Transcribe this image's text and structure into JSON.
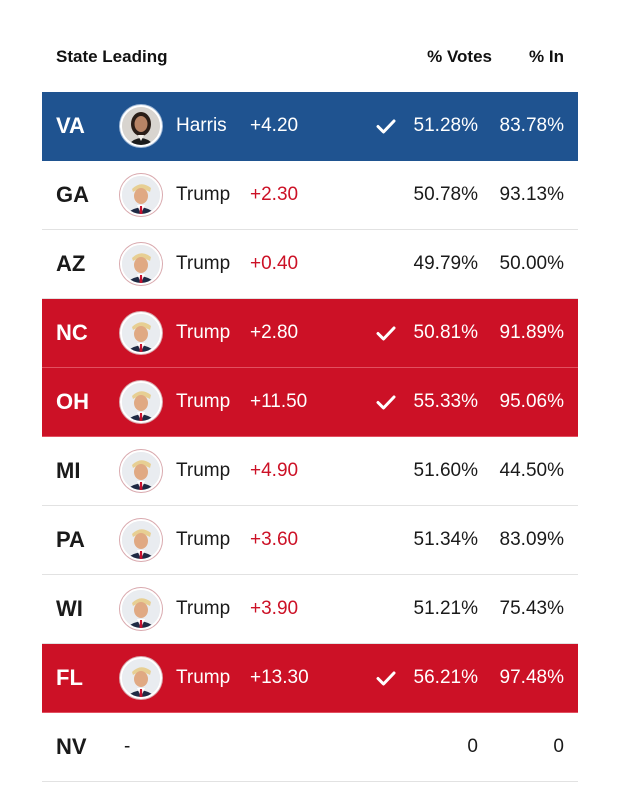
{
  "header": {
    "state_leading": "State Leading",
    "pct_votes": "% Votes",
    "pct_in": "% In"
  },
  "colors": {
    "dem": "#1f5390",
    "rep": "#cc1126"
  },
  "rows": [
    {
      "state": "VA",
      "candidate": "Harris",
      "margin": "+4.20",
      "called": true,
      "votes": "51.28%",
      "in": "83.78%",
      "style": "blue"
    },
    {
      "state": "GA",
      "candidate": "Trump",
      "margin": "+2.30",
      "called": false,
      "votes": "50.78%",
      "in": "93.13%",
      "style": "plain"
    },
    {
      "state": "AZ",
      "candidate": "Trump",
      "margin": "+0.40",
      "called": false,
      "votes": "49.79%",
      "in": "50.00%",
      "style": "plain"
    },
    {
      "state": "NC",
      "candidate": "Trump",
      "margin": "+2.80",
      "called": true,
      "votes": "50.81%",
      "in": "91.89%",
      "style": "red"
    },
    {
      "state": "OH",
      "candidate": "Trump",
      "margin": "+11.50",
      "called": true,
      "votes": "55.33%",
      "in": "95.06%",
      "style": "red"
    },
    {
      "state": "MI",
      "candidate": "Trump",
      "margin": "+4.90",
      "called": false,
      "votes": "51.60%",
      "in": "44.50%",
      "style": "plain"
    },
    {
      "state": "PA",
      "candidate": "Trump",
      "margin": "+3.60",
      "called": false,
      "votes": "51.34%",
      "in": "83.09%",
      "style": "plain"
    },
    {
      "state": "WI",
      "candidate": "Trump",
      "margin": "+3.90",
      "called": false,
      "votes": "51.21%",
      "in": "75.43%",
      "style": "plain"
    },
    {
      "state": "FL",
      "candidate": "Trump",
      "margin": "+13.30",
      "called": true,
      "votes": "56.21%",
      "in": "97.48%",
      "style": "red"
    },
    {
      "state": "NV",
      "candidate": "",
      "margin": "",
      "dash": "-",
      "called": false,
      "votes": "0",
      "in": "0",
      "style": "plain"
    }
  ]
}
